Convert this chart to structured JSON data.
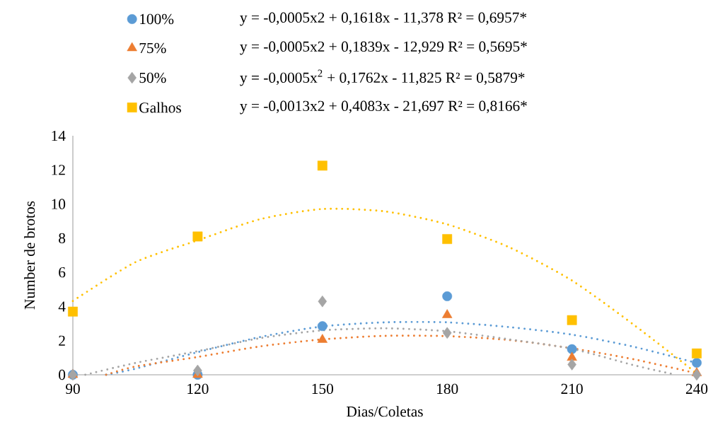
{
  "chart_data": {
    "type": "scatter",
    "xlabel": "Dias/Coletas",
    "ylabel": "Number de brotos",
    "x": [
      90,
      120,
      150,
      180,
      210,
      240
    ],
    "series": [
      {
        "name": "100%",
        "marker": "circle",
        "color": "#5b9bd5",
        "values": [
          0,
          0,
          2.85,
          4.6,
          1.5,
          0.7
        ]
      },
      {
        "name": "75%",
        "marker": "triangle",
        "color": "#ed7d31",
        "values": [
          0,
          0,
          2.05,
          3.5,
          1.0,
          0.1
        ]
      },
      {
        "name": "50%",
        "marker": "diamond",
        "color": "#a5a5a5",
        "values": [
          0,
          0.25,
          4.3,
          2.45,
          0.6,
          0
        ]
      },
      {
        "name": "Galhos",
        "marker": "square",
        "color": "#ffc000",
        "values": [
          3.7,
          8.1,
          12.25,
          7.95,
          3.2,
          1.25
        ]
      },
      {
        "type": "line",
        "line_style": "dotted",
        "color": "#5b9bd5",
        "x": [
          98,
          105,
          120,
          135,
          150,
          165,
          180,
          195,
          210,
          225,
          240
        ],
        "values": [
          0,
          0.35,
          1.32,
          2.21,
          2.83,
          3.07,
          3.07,
          2.79,
          2.35,
          1.63,
          0.69
        ]
      },
      {
        "type": "line",
        "line_style": "dotted",
        "color": "#ed7d31",
        "x": [
          98,
          105,
          120,
          135,
          150,
          165,
          180,
          195,
          210,
          225,
          240
        ],
        "values": [
          0,
          0.48,
          1.04,
          1.66,
          2.07,
          2.28,
          2.26,
          2.03,
          1.55,
          0.9,
          0.08
        ]
      },
      {
        "type": "line",
        "line_style": "dotted",
        "color": "#a5a5a5",
        "x": [
          93,
          105,
          120,
          135,
          150,
          165,
          180,
          195,
          210,
          225,
          235
        ],
        "values": [
          0,
          0.69,
          1.38,
          2.14,
          2.6,
          2.72,
          2.55,
          2.07,
          1.52,
          0.55,
          0
        ]
      },
      {
        "type": "line",
        "line_style": "dotted",
        "color": "#ffc000",
        "x": [
          90,
          105,
          120,
          135,
          150,
          165,
          180,
          195,
          210,
          225,
          240
        ],
        "values": [
          4.32,
          6.59,
          7.87,
          9.11,
          9.71,
          9.57,
          8.81,
          7.46,
          5.52,
          2.9,
          0.08
        ]
      }
    ],
    "annotations": [
      "y = -0,0005x2 + 0,1618x - 11,378 R² = 0,6957*",
      "y = -0,0005x2 + 0,1839x - 12,929 R² = 0,5695*",
      "y = -0,0005x$^{2}$ + 0,1762x - 11,825 R² = 0,5879*",
      "y = -0,0013x2 + 0,4083x - 21,697 R² = 0,8166*"
    ],
    "xlim": [
      90,
      240
    ],
    "ylim": [
      0,
      14
    ],
    "xticks": [
      90,
      120,
      150,
      180,
      210,
      240
    ],
    "yticks": [
      0,
      2,
      4,
      6,
      8,
      10,
      12,
      14
    ],
    "grid": false,
    "legend": "top"
  }
}
